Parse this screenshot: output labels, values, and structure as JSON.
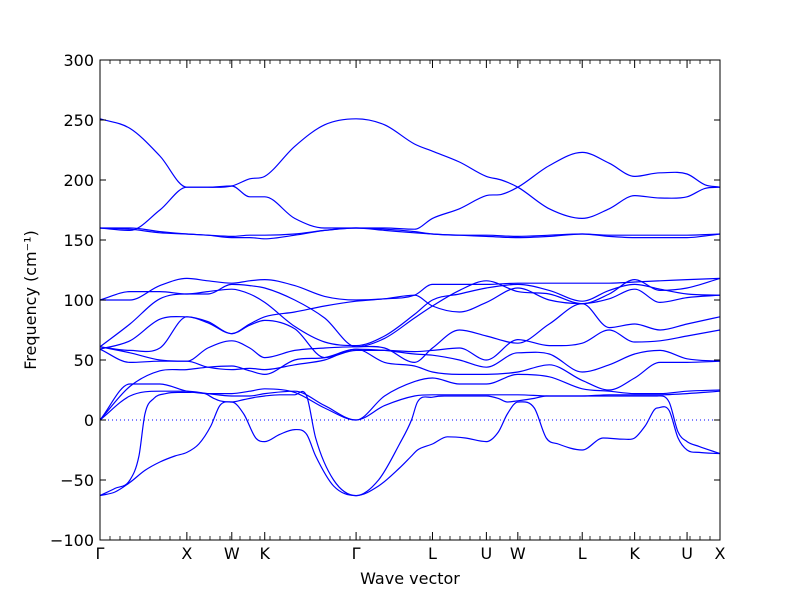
{
  "chart_data": {
    "type": "line",
    "title": "",
    "xlabel": "Wave vector",
    "ylabel": "Frequency (cm⁻¹)",
    "ylim": [
      -100,
      300
    ],
    "yticks": [
      -100,
      -50,
      0,
      50,
      100,
      150,
      200,
      250,
      300
    ],
    "ytick_labels": [
      "−100",
      "−50",
      "0",
      "50",
      "100",
      "150",
      "200",
      "250",
      "300"
    ],
    "xlim": [
      0,
      20.7
    ],
    "xticks": [
      {
        "label": "Γ",
        "x": 0
      },
      {
        "label": "X",
        "x": 2.9
      },
      {
        "label": "W",
        "x": 4.4
      },
      {
        "label": "K",
        "x": 5.5
      },
      {
        "label": "Γ",
        "x": 8.55
      },
      {
        "label": "L",
        "x": 11.1
      },
      {
        "label": "U",
        "x": 12.9
      },
      {
        "label": "W",
        "x": 13.95
      },
      {
        "label": "L",
        "x": 16.1
      },
      {
        "label": "K",
        "x": 17.85
      },
      {
        "label": "U",
        "x": 19.6
      },
      {
        "label": "X",
        "x": 20.7
      }
    ],
    "zero_line": 0,
    "grid": false,
    "series_color": "#0000ff",
    "series": [
      {
        "x": [
          0,
          1,
          2,
          2.9,
          3.6,
          4.4,
          5,
          5.5,
          6.5,
          7.5,
          8.55,
          9.5,
          10.5,
          11.1,
          12,
          12.9,
          13.4,
          13.95,
          15,
          16.1,
          17,
          17.85,
          18.7,
          19.6,
          20.2,
          20.7
        ],
        "y": [
          251,
          243,
          220,
          194,
          194,
          195,
          186,
          186,
          168,
          160,
          160,
          160,
          159,
          168,
          176,
          187,
          188,
          194,
          212,
          223,
          214,
          203,
          206,
          205,
          196,
          194
        ]
      },
      {
        "x": [
          0,
          1,
          2,
          2.9,
          3.6,
          4.4,
          5,
          5.5,
          6.5,
          7.5,
          8.55,
          9.5,
          10.5,
          11.1,
          12,
          12.9,
          13.4,
          13.95,
          15,
          16.1,
          17,
          17.85,
          18.7,
          19.6,
          20.2,
          20.7
        ],
        "y": [
          160,
          158,
          175,
          194,
          194,
          195,
          201,
          203,
          228,
          246,
          251,
          246,
          230,
          224,
          215,
          203,
          200,
          194,
          176,
          168,
          176,
          187,
          185,
          186,
          193,
          194
        ]
      },
      {
        "x": [
          0,
          1,
          2,
          2.9,
          3.6,
          4.4,
          5,
          5.5,
          6.5,
          7.5,
          8.55,
          9.5,
          10.5,
          11.1,
          12,
          12.9,
          13.95,
          15,
          16.1,
          17,
          17.85,
          18.7,
          19.6,
          20.7
        ],
        "y": [
          160,
          159,
          156,
          155,
          154,
          153,
          154,
          154,
          155,
          158,
          160,
          158,
          156,
          155,
          154,
          154,
          153,
          154,
          155,
          154,
          154,
          154,
          154,
          155
        ]
      },
      {
        "x": [
          0,
          1,
          2,
          2.9,
          3.6,
          4.4,
          5,
          5.5,
          6.5,
          7.5,
          8.55,
          9.5,
          10.5,
          11.1,
          12,
          12.9,
          13.95,
          15,
          16.1,
          17,
          17.85,
          18.7,
          19.6,
          20.7
        ],
        "y": [
          160,
          160,
          157,
          155,
          154,
          152,
          152,
          151,
          154,
          158,
          160,
          159,
          157,
          155,
          154,
          153,
          152,
          153,
          155,
          153,
          152,
          152,
          152,
          155
        ]
      },
      {
        "x": [
          0,
          1,
          2,
          2.9,
          3.6,
          4.4,
          5,
          5.5,
          6.5,
          7.5,
          8.55,
          9.5,
          10.5,
          11.1,
          12,
          12.9,
          13.95,
          15,
          16.1,
          17,
          17.85,
          18.7,
          19.6,
          20.7
        ],
        "y": [
          100,
          107,
          107,
          105,
          107,
          109,
          105,
          98,
          78,
          65,
          62,
          70,
          88,
          100,
          105,
          110,
          113,
          108,
          99,
          108,
          113,
          109,
          105,
          104
        ]
      },
      {
        "x": [
          0,
          1,
          2,
          2.9,
          3.6,
          4.4,
          5,
          5.5,
          6.5,
          7.5,
          8.55,
          9.5,
          10.5,
          11.1,
          12,
          12.9,
          13.95,
          15,
          16.1,
          17,
          17.85,
          18.7,
          19.6,
          20.7
        ],
        "y": [
          100,
          100,
          112,
          118,
          116,
          114,
          116,
          117,
          112,
          103,
          100,
          101,
          104,
          113,
          113,
          113,
          114,
          114,
          114,
          114,
          115,
          116,
          117,
          118
        ]
      },
      {
        "x": [
          0,
          1,
          2,
          2.9,
          3.6,
          4.4,
          5,
          5.5,
          6.5,
          7.5,
          8.55,
          9.5,
          10.5,
          11.1,
          12,
          12.9,
          13.95,
          15,
          16.1,
          17,
          17.85,
          18.7,
          19.6,
          20.7
        ],
        "y": [
          61,
          80,
          101,
          105,
          105,
          113,
          112,
          110,
          100,
          85,
          61,
          68,
          85,
          95,
          108,
          116,
          107,
          105,
          97,
          105,
          117,
          108,
          110,
          118
        ]
      },
      {
        "x": [
          0,
          1,
          2,
          2.9,
          3.6,
          4.4,
          5,
          5.5,
          6.5,
          7.5,
          8.55,
          9.5,
          10.5,
          11.1,
          12,
          12.9,
          13.95,
          15,
          16.1,
          17,
          17.85,
          18.7,
          19.6,
          20.7
        ],
        "y": [
          61,
          58,
          60,
          86,
          82,
          72,
          80,
          86,
          90,
          95,
          99,
          101,
          104,
          95,
          90,
          98,
          110,
          100,
          97,
          101,
          109,
          98,
          102,
          104
        ]
      },
      {
        "x": [
          0,
          1,
          2,
          2.9,
          3.6,
          4.4,
          5,
          5.5,
          6.5,
          7.5,
          8.55,
          9.5,
          10.5,
          11.1,
          12,
          12.9,
          13.95,
          15,
          16.1,
          17,
          17.85,
          18.7,
          19.6,
          20.7
        ],
        "y": [
          61,
          56,
          50,
          49,
          60,
          66,
          60,
          52,
          58,
          60,
          61,
          60,
          48,
          60,
          75,
          70,
          64,
          80,
          97,
          77,
          80,
          75,
          80,
          86
        ]
      },
      {
        "x": [
          0,
          1,
          2,
          2.9,
          3.6,
          4.4,
          5,
          5.5,
          6.5,
          7.5,
          8.55,
          9.5,
          10.5,
          11.1,
          12,
          12.9,
          13.95,
          15,
          16.1,
          17,
          17.85,
          18.7,
          19.6,
          20.7
        ],
        "y": [
          59,
          66,
          84,
          86,
          81,
          72,
          79,
          83,
          76,
          52,
          58,
          58,
          57,
          58,
          60,
          50,
          67,
          62,
          64,
          75,
          65,
          66,
          70,
          75
        ]
      },
      {
        "x": [
          0,
          1,
          2,
          2.9,
          3.6,
          4.4,
          5,
          5.5,
          6.5,
          7.5,
          8.55,
          9.5,
          10.5,
          11.1,
          12,
          12.9,
          13.95,
          15,
          16.1,
          17,
          17.85,
          18.7,
          19.6,
          20.7
        ],
        "y": [
          59,
          48,
          49,
          49,
          44,
          42,
          43,
          42,
          46,
          50,
          59,
          58,
          55,
          54,
          50,
          44,
          56,
          55,
          40,
          46,
          55,
          58,
          51,
          49
        ]
      },
      {
        "x": [
          0,
          1,
          2,
          2.9,
          3.6,
          4.4,
          5,
          5.5,
          6.5,
          7.5,
          8.55,
          9.5,
          10.5,
          11.1,
          12,
          12.9,
          13.95,
          15,
          16.1,
          17,
          17.85,
          18.7,
          19.6,
          20.7
        ],
        "y": [
          0,
          28,
          41,
          42,
          44,
          45,
          41,
          38,
          50,
          52,
          59,
          48,
          45,
          40,
          38,
          38,
          40,
          46,
          33,
          25,
          35,
          48,
          48,
          49
        ]
      },
      {
        "x": [
          0,
          1,
          2,
          2.9,
          3.6,
          4.4,
          5,
          5.5,
          6.5,
          7.5,
          8.55,
          9.5,
          10.5,
          11.1,
          12,
          12.9,
          13.95,
          15,
          16.1,
          17,
          17.85,
          18.7,
          19.6,
          20.7
        ],
        "y": [
          0,
          30,
          30,
          24,
          22,
          22,
          24,
          26,
          23,
          10,
          0,
          20,
          32,
          35,
          30,
          30,
          38,
          36,
          26,
          24,
          22,
          22,
          24,
          25
        ]
      },
      {
        "x": [
          0,
          1,
          2,
          2.9,
          3.6,
          4.4,
          5,
          5.5,
          6.5,
          7.5,
          8.55,
          9.5,
          10.5,
          11.1,
          12,
          12.9,
          13.95,
          15,
          16.1,
          17,
          17.85,
          18.7,
          19.6,
          20.7
        ],
        "y": [
          0,
          20,
          24,
          24,
          22,
          20,
          20,
          22,
          24,
          12,
          0,
          12,
          20,
          21,
          21,
          21,
          21,
          20,
          20,
          21,
          21,
          21,
          22,
          24
        ]
      },
      {
        "x": [
          0,
          0.5,
          1,
          1.3,
          1.5,
          1.8,
          2.2,
          2.6,
          2.9,
          3.5,
          3.8,
          4.0,
          4.4,
          4.8,
          5.2,
          5.5,
          6.0,
          6.5,
          6.9,
          7.2,
          7.8,
          8.55,
          9.3,
          10.0,
          10.4,
          10.6,
          11.1,
          11.5,
          12.2,
          12.9,
          13.3,
          13.6,
          13.95,
          14.5,
          14.9,
          15.3,
          16.1,
          16.8,
          17.5,
          17.85,
          18.2,
          18.6,
          19.0,
          19.3,
          19.6,
          20.0,
          20.7
        ],
        "y": [
          -63,
          -57,
          -50,
          -30,
          5,
          18,
          22,
          23,
          23,
          22,
          18,
          16,
          15,
          17,
          19,
          20,
          21,
          21,
          20,
          -15,
          -50,
          -63,
          -50,
          -20,
          0,
          15,
          19,
          20,
          20,
          20,
          18,
          15,
          16,
          18,
          20,
          20,
          20,
          20,
          20,
          20,
          20,
          20,
          15,
          -10,
          -18,
          -22,
          -28
        ]
      },
      {
        "x": [
          0,
          0.5,
          1,
          1.5,
          2,
          2.5,
          2.9,
          3.3,
          3.7,
          4.0,
          4.4,
          4.8,
          5.2,
          5.5,
          6.0,
          6.5,
          6.9,
          7.2,
          7.8,
          8.55,
          9.3,
          10.0,
          10.4,
          10.6,
          11.1,
          11.6,
          12.2,
          12.9,
          13.3,
          13.6,
          13.95,
          14.5,
          14.9,
          15.3,
          16.1,
          16.8,
          17.5,
          17.85,
          18.2,
          18.6,
          19.0,
          19.3,
          19.6,
          20.0,
          20.7
        ],
        "y": [
          -63,
          -60,
          -52,
          -42,
          -35,
          -30,
          -27,
          -20,
          -5,
          12,
          15,
          5,
          -15,
          -18,
          -12,
          -8,
          -12,
          -30,
          -55,
          -63,
          -55,
          -40,
          -30,
          -25,
          -20,
          -14,
          -15,
          -18,
          -10,
          5,
          15,
          10,
          -15,
          -20,
          -25,
          -15,
          -16,
          -15,
          -5,
          10,
          8,
          -15,
          -25,
          -27,
          -28
        ]
      }
    ]
  }
}
